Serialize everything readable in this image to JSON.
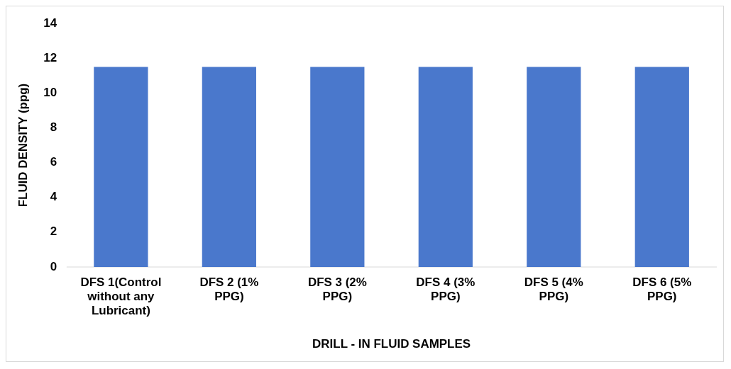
{
  "chart_data": {
    "type": "bar",
    "xlabel": "DRILL - IN FLUID SAMPLES",
    "ylabel": "FLUID DENSITY (ppg)",
    "categories": [
      "DFS 1(Control without any Lubricant)",
      "DFS 2 (1% PPG)",
      "DFS 3 (2% PPG)",
      "DFS 4 (3% PPG)",
      "DFS 5 (4% PPG)",
      "DFS 6 (5% PPG)"
    ],
    "values": [
      11.5,
      11.5,
      11.5,
      11.5,
      11.5,
      11.5
    ],
    "color": "#4a78cc",
    "ylim": [
      0,
      14
    ],
    "yticks": [
      0,
      2,
      4,
      6,
      8,
      10,
      12,
      14
    ],
    "grid": false,
    "legend": false
  }
}
